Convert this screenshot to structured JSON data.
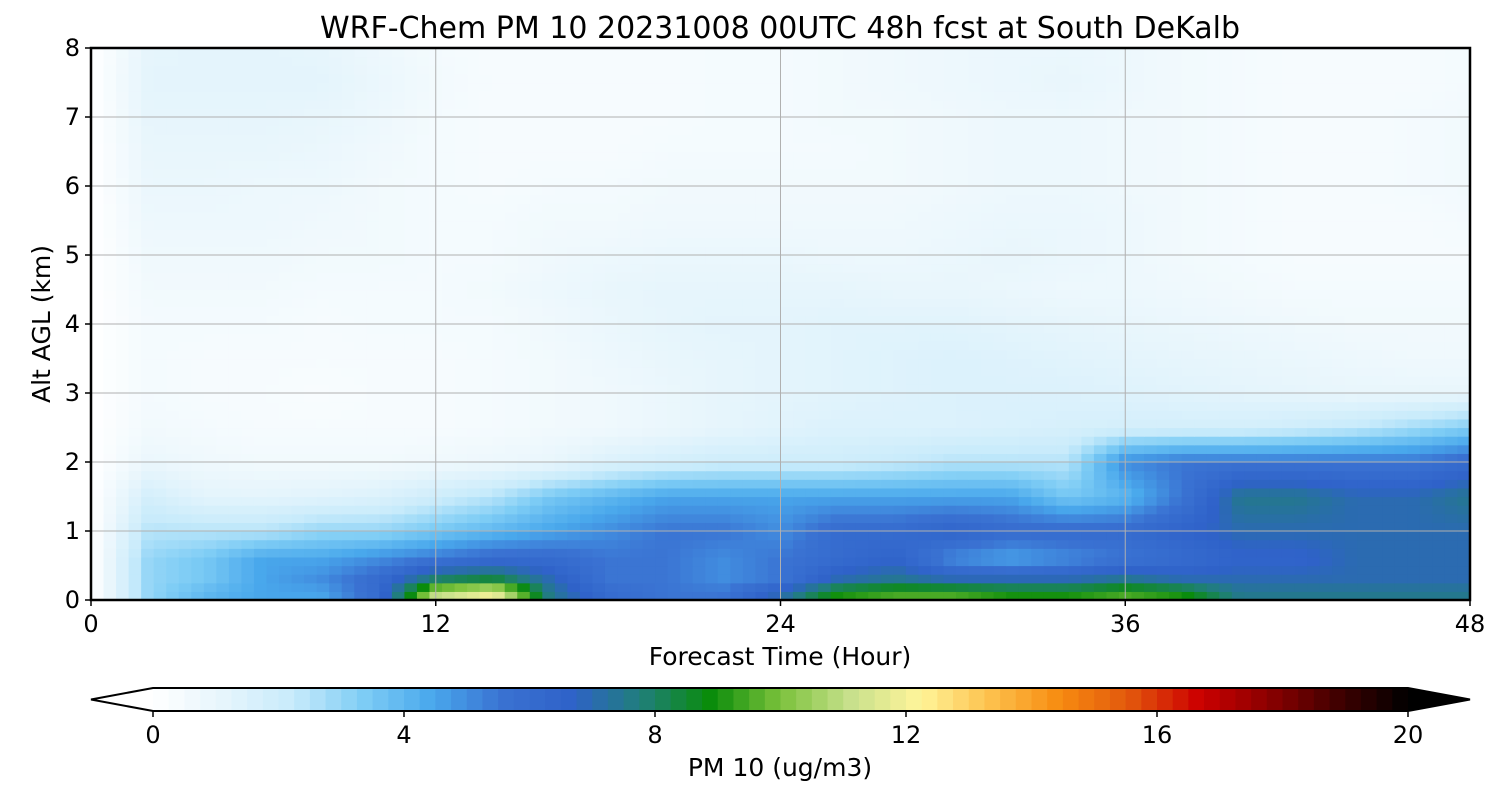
{
  "chart_data": {
    "type": "heatmap",
    "title": "WRF-Chem PM 10  20231008 00UTC 48h fcst at South DeKalb",
    "xlabel": "Forecast Time (Hour)",
    "ylabel": "Alt AGL (km)",
    "xlim": [
      0,
      48
    ],
    "ylim": [
      0,
      8
    ],
    "x_ticks": [
      0,
      12,
      24,
      36,
      48
    ],
    "y_ticks": [
      0,
      1,
      2,
      3,
      4,
      5,
      6,
      7,
      8
    ],
    "grid": true,
    "colorbar": {
      "label": "PM 10  (ug/m3)",
      "range": [
        0,
        20
      ],
      "ticks": [
        0,
        4,
        8,
        12,
        16,
        20
      ],
      "extend": "both",
      "colors": [
        "#ffffff",
        "#e6f5fc",
        "#c8ebfb",
        "#7fcdf5",
        "#49a8ec",
        "#3a72d2",
        "#2f62c9",
        "#207f7a",
        "#0a8c0a",
        "#7cc23c",
        "#c7e08c",
        "#fff59a",
        "#fdc14d",
        "#f78c10",
        "#e2570d",
        "#cc0000",
        "#8b0000",
        "#400000",
        "#000000"
      ]
    },
    "fields": {
      "x": [
        0,
        2,
        4,
        6,
        8,
        10,
        12,
        14,
        16,
        18,
        20,
        22,
        24,
        26,
        28,
        30,
        32,
        34,
        36,
        38,
        40,
        42,
        44,
        46,
        48
      ],
      "y": [
        0.1,
        0.3,
        0.6,
        1.0,
        1.5,
        2.0,
        2.5,
        3.0,
        3.5,
        4.0,
        4.5,
        5.0,
        5.5,
        6.0,
        6.5,
        7.0,
        7.5,
        8.0
      ],
      "z": [
        [
          0.0,
          3.0,
          4.0,
          4.5,
          4.5,
          6.0,
          11.0,
          12.0,
          7.5,
          6.0,
          5.5,
          5.5,
          7.0,
          9.0,
          9.5,
          9.5,
          9.0,
          9.0,
          9.5,
          9.0,
          7.5,
          7.5,
          7.5,
          7.5,
          7.5
        ],
        [
          0.0,
          3.0,
          3.5,
          4.5,
          5.0,
          6.0,
          8.0,
          8.5,
          7.0,
          5.5,
          5.5,
          5.0,
          5.5,
          7.0,
          7.5,
          7.0,
          7.0,
          7.0,
          7.5,
          7.0,
          7.0,
          7.0,
          7.0,
          7.0,
          7.0
        ],
        [
          0.0,
          3.0,
          3.5,
          4.5,
          4.5,
          5.0,
          5.5,
          6.0,
          6.0,
          5.5,
          5.5,
          5.0,
          5.5,
          6.0,
          6.5,
          5.0,
          4.5,
          5.0,
          5.5,
          6.0,
          6.5,
          6.5,
          7.0,
          7.0,
          7.0
        ],
        [
          0.0,
          2.5,
          2.5,
          2.5,
          3.0,
          3.0,
          3.5,
          4.0,
          4.5,
          5.0,
          5.5,
          5.5,
          5.0,
          6.0,
          6.0,
          6.5,
          6.0,
          6.0,
          6.0,
          6.5,
          7.0,
          7.0,
          7.0,
          7.0,
          7.0
        ],
        [
          0.0,
          1.8,
          1.2,
          1.2,
          1.3,
          1.5,
          2.0,
          2.5,
          3.5,
          4.0,
          4.5,
          4.5,
          4.5,
          4.5,
          4.5,
          4.5,
          4.5,
          3.5,
          4.0,
          5.5,
          7.5,
          7.5,
          7.0,
          7.0,
          7.5
        ],
        [
          0.0,
          0.9,
          0.7,
          0.6,
          0.6,
          0.6,
          0.7,
          0.8,
          1.0,
          1.5,
          1.8,
          2.0,
          2.0,
          2.0,
          2.2,
          2.5,
          2.5,
          2.5,
          5.0,
          5.5,
          5.5,
          5.5,
          5.5,
          5.5,
          6.0
        ],
        [
          0.0,
          0.6,
          0.5,
          0.4,
          0.4,
          0.4,
          0.4,
          0.5,
          0.6,
          0.7,
          0.9,
          1.1,
          1.3,
          1.5,
          1.5,
          1.5,
          1.6,
          1.7,
          1.8,
          1.8,
          1.8,
          2.0,
          2.3,
          2.8,
          3.3
        ],
        [
          0.0,
          0.5,
          0.4,
          0.4,
          0.3,
          0.4,
          0.4,
          0.5,
          0.6,
          0.7,
          0.9,
          1.1,
          1.2,
          1.3,
          1.4,
          1.5,
          1.5,
          1.5,
          1.4,
          1.3,
          1.2,
          1.1,
          1.0,
          1.0,
          1.0
        ],
        [
          0.0,
          0.5,
          0.4,
          0.4,
          0.4,
          0.4,
          0.4,
          0.5,
          0.6,
          0.8,
          1.0,
          1.1,
          1.2,
          1.3,
          1.4,
          1.5,
          1.4,
          1.3,
          1.2,
          1.1,
          1.0,
          0.9,
          0.8,
          0.7,
          0.7
        ],
        [
          0.0,
          0.5,
          0.5,
          0.5,
          0.4,
          0.5,
          0.5,
          0.5,
          0.7,
          0.9,
          1.1,
          1.2,
          1.2,
          1.3,
          1.3,
          1.3,
          1.2,
          1.1,
          1.0,
          0.9,
          0.8,
          0.7,
          0.6,
          0.6,
          0.6
        ],
        [
          0.0,
          0.6,
          0.6,
          0.6,
          0.5,
          0.5,
          0.5,
          0.6,
          0.8,
          1.0,
          1.1,
          1.1,
          1.1,
          1.1,
          1.0,
          1.0,
          0.9,
          0.8,
          0.8,
          0.7,
          0.6,
          0.5,
          0.5,
          0.5,
          0.5
        ],
        [
          0.0,
          0.7,
          0.7,
          0.7,
          0.6,
          0.6,
          0.5,
          0.5,
          0.7,
          0.8,
          0.9,
          0.9,
          0.9,
          0.8,
          0.8,
          0.9,
          1.0,
          0.9,
          0.8,
          0.6,
          0.5,
          0.4,
          0.4,
          0.4,
          0.4
        ],
        [
          0.0,
          0.8,
          0.8,
          0.8,
          0.7,
          0.6,
          0.5,
          0.5,
          0.6,
          0.6,
          0.7,
          0.7,
          0.7,
          0.7,
          0.7,
          0.8,
          0.9,
          0.9,
          0.8,
          0.6,
          0.5,
          0.4,
          0.4,
          0.4,
          0.5
        ],
        [
          0.0,
          0.9,
          0.9,
          0.8,
          0.8,
          0.6,
          0.5,
          0.4,
          0.5,
          0.5,
          0.6,
          0.6,
          0.6,
          0.6,
          0.6,
          0.7,
          0.8,
          0.8,
          0.7,
          0.6,
          0.5,
          0.4,
          0.4,
          0.5,
          0.6
        ],
        [
          0.0,
          1.0,
          1.0,
          1.0,
          0.9,
          0.7,
          0.5,
          0.4,
          0.4,
          0.4,
          0.5,
          0.5,
          0.5,
          0.5,
          0.6,
          0.7,
          0.8,
          0.8,
          0.7,
          0.6,
          0.5,
          0.4,
          0.4,
          0.5,
          0.6
        ],
        [
          0.0,
          1.1,
          1.1,
          1.1,
          1.0,
          0.8,
          0.5,
          0.4,
          0.4,
          0.4,
          0.4,
          0.5,
          0.5,
          0.6,
          0.6,
          0.7,
          0.8,
          0.8,
          0.7,
          0.6,
          0.5,
          0.4,
          0.4,
          0.5,
          0.6
        ],
        [
          0.0,
          1.2,
          1.2,
          1.2,
          1.2,
          0.9,
          0.6,
          0.4,
          0.4,
          0.4,
          0.4,
          0.5,
          0.5,
          0.6,
          0.7,
          0.8,
          0.9,
          1.0,
          0.8,
          0.6,
          0.5,
          0.4,
          0.4,
          0.4,
          0.5
        ],
        [
          0.0,
          1.1,
          1.2,
          1.2,
          1.1,
          0.8,
          0.5,
          0.4,
          0.4,
          0.4,
          0.4,
          0.5,
          0.5,
          0.6,
          0.7,
          0.8,
          0.9,
          0.9,
          0.8,
          0.6,
          0.5,
          0.4,
          0.4,
          0.4,
          0.5
        ]
      ]
    }
  }
}
